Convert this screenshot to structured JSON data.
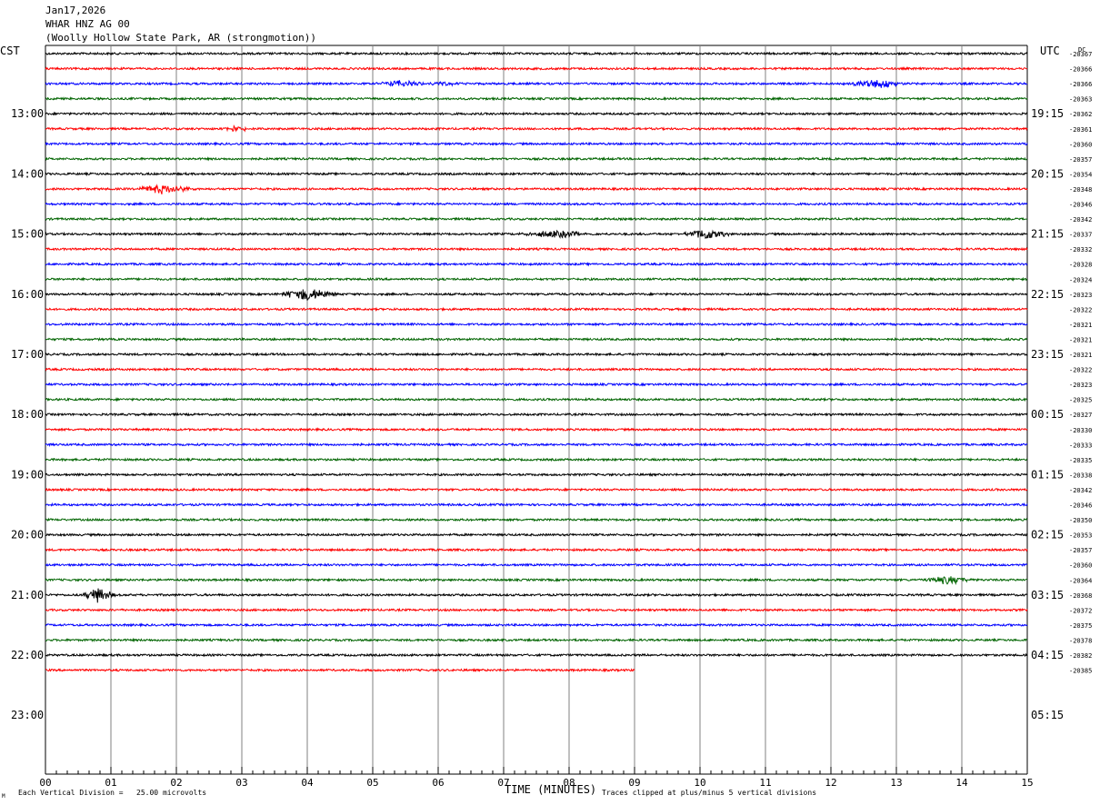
{
  "header": {
    "date": "Jan17,2026",
    "station": "WHAR HNZ AG 00",
    "location": "(Woolly Hollow State Park, AR (strongmotion))"
  },
  "left_zone": "CST",
  "right_zone": "UTC",
  "dc_label": "DC",
  "footer": {
    "scale_note": "Each Vertical Division =   25.00 microvolts",
    "clip_note": "Traces clipped at plus/minus 5 vertical divisions",
    "mark": "M"
  },
  "colors": {
    "black": "#000000",
    "red": "#ff0000",
    "blue": "#0000ff",
    "green": "#006400",
    "grid": "#808080"
  },
  "chart_data": {
    "type": "line",
    "title": "WHAR HNZ AG 00",
    "xlabel": "TIME (MINUTES)",
    "x_ticks": [
      "00",
      "01",
      "02",
      "03",
      "04",
      "05",
      "06",
      "07",
      "08",
      "09",
      "10",
      "11",
      "12",
      "13",
      "14",
      "15"
    ],
    "xlim": [
      0,
      15
    ],
    "trace_interval_minutes": 15,
    "trace_colors_cycle": [
      "black",
      "red",
      "blue",
      "green"
    ],
    "left_hour_labels": [
      {
        "trace": 4,
        "text": "13:00"
      },
      {
        "trace": 8,
        "text": "14:00"
      },
      {
        "trace": 12,
        "text": "15:00"
      },
      {
        "trace": 16,
        "text": "16:00"
      },
      {
        "trace": 20,
        "text": "17:00"
      },
      {
        "trace": 24,
        "text": "18:00"
      },
      {
        "trace": 28,
        "text": "19:00"
      },
      {
        "trace": 32,
        "text": "20:00"
      },
      {
        "trace": 36,
        "text": "21:00"
      },
      {
        "trace": 40,
        "text": "22:00"
      },
      {
        "trace": 44,
        "text": "23:00"
      }
    ],
    "right_hour_labels": [
      {
        "trace": 4,
        "text": "19:15"
      },
      {
        "trace": 8,
        "text": "20:15"
      },
      {
        "trace": 12,
        "text": "21:15"
      },
      {
        "trace": 16,
        "text": "22:15"
      },
      {
        "trace": 20,
        "text": "23:15"
      },
      {
        "trace": 24,
        "text": "00:15"
      },
      {
        "trace": 28,
        "text": "01:15"
      },
      {
        "trace": 32,
        "text": "02:15"
      },
      {
        "trace": 36,
        "text": "03:15"
      },
      {
        "trace": 40,
        "text": "04:15"
      },
      {
        "trace": 44,
        "text": "05:15"
      }
    ],
    "dc_offsets": [
      "-20367",
      "-20366",
      "-20366",
      "-20363",
      "-20362",
      "-20361",
      "-20360",
      "-20357",
      "-20354",
      "-20348",
      "-20346",
      "-20342",
      "-20337",
      "-20332",
      "-20328",
      "-20324",
      "-20323",
      "-20322",
      "-20321",
      "-20321",
      "-20321",
      "-20322",
      "-20323",
      "-20325",
      "-20327",
      "-20330",
      "-20333",
      "-20335",
      "-20338",
      "-20342",
      "-20346",
      "-20350",
      "-20353",
      "-20357",
      "-20360",
      "-20364",
      "-20368",
      "-20372",
      "-20375",
      "-20378",
      "-20382",
      "-20385"
    ],
    "trace_count": 42,
    "last_trace_end_minute": 9.0,
    "events": [
      {
        "trace": 2,
        "minute": 5.4,
        "amp": 3,
        "dur": 0.5
      },
      {
        "trace": 2,
        "minute": 6.1,
        "amp": 2,
        "dur": 0.3
      },
      {
        "trace": 2,
        "minute": 12.7,
        "amp": 5,
        "dur": 0.5
      },
      {
        "trace": 5,
        "minute": 2.9,
        "amp": 3,
        "dur": 0.3
      },
      {
        "trace": 9,
        "minute": 1.8,
        "amp": 5,
        "dur": 0.5
      },
      {
        "trace": 12,
        "minute": 7.8,
        "amp": 4,
        "dur": 0.6
      },
      {
        "trace": 12,
        "minute": 10.1,
        "amp": 6,
        "dur": 0.4
      },
      {
        "trace": 16,
        "minute": 4.0,
        "amp": 7,
        "dur": 0.5
      },
      {
        "trace": 35,
        "minute": 13.8,
        "amp": 5,
        "dur": 0.4
      },
      {
        "trace": 36,
        "minute": 0.8,
        "amp": 8,
        "dur": 0.3
      }
    ]
  }
}
